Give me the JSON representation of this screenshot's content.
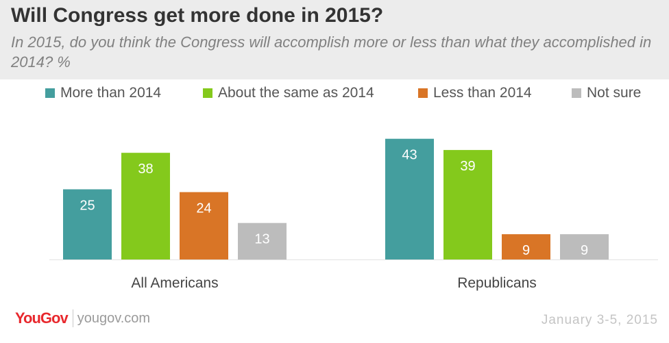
{
  "header": {
    "title": "Will Congress get more done in 2015?",
    "subtitle": "In 2015, do you think the Congress will accomplish more or less than what they accomplished in 2014? %"
  },
  "chart_data": {
    "type": "bar",
    "categories": [
      "All Americans",
      "Republicans"
    ],
    "series": [
      {
        "name": "More than 2014",
        "color": "#449e9e",
        "values": [
          25,
          43
        ]
      },
      {
        "name": "About the same as 2014",
        "color": "#84c91c",
        "values": [
          38,
          39
        ]
      },
      {
        "name": "Less than 2014",
        "color": "#d97526",
        "values": [
          24,
          9
        ]
      },
      {
        "name": "Not sure",
        "color": "#bcbcbc",
        "values": [
          13,
          9
        ]
      }
    ],
    "ylim": [
      0,
      45
    ],
    "grid": false,
    "legend": "top"
  },
  "footer": {
    "logo": "YouGov",
    "site": "yougov.com",
    "date": "January 3-5, 2015"
  },
  "colors": {
    "header_bg": "#ececec",
    "brand": "#e8282d"
  }
}
